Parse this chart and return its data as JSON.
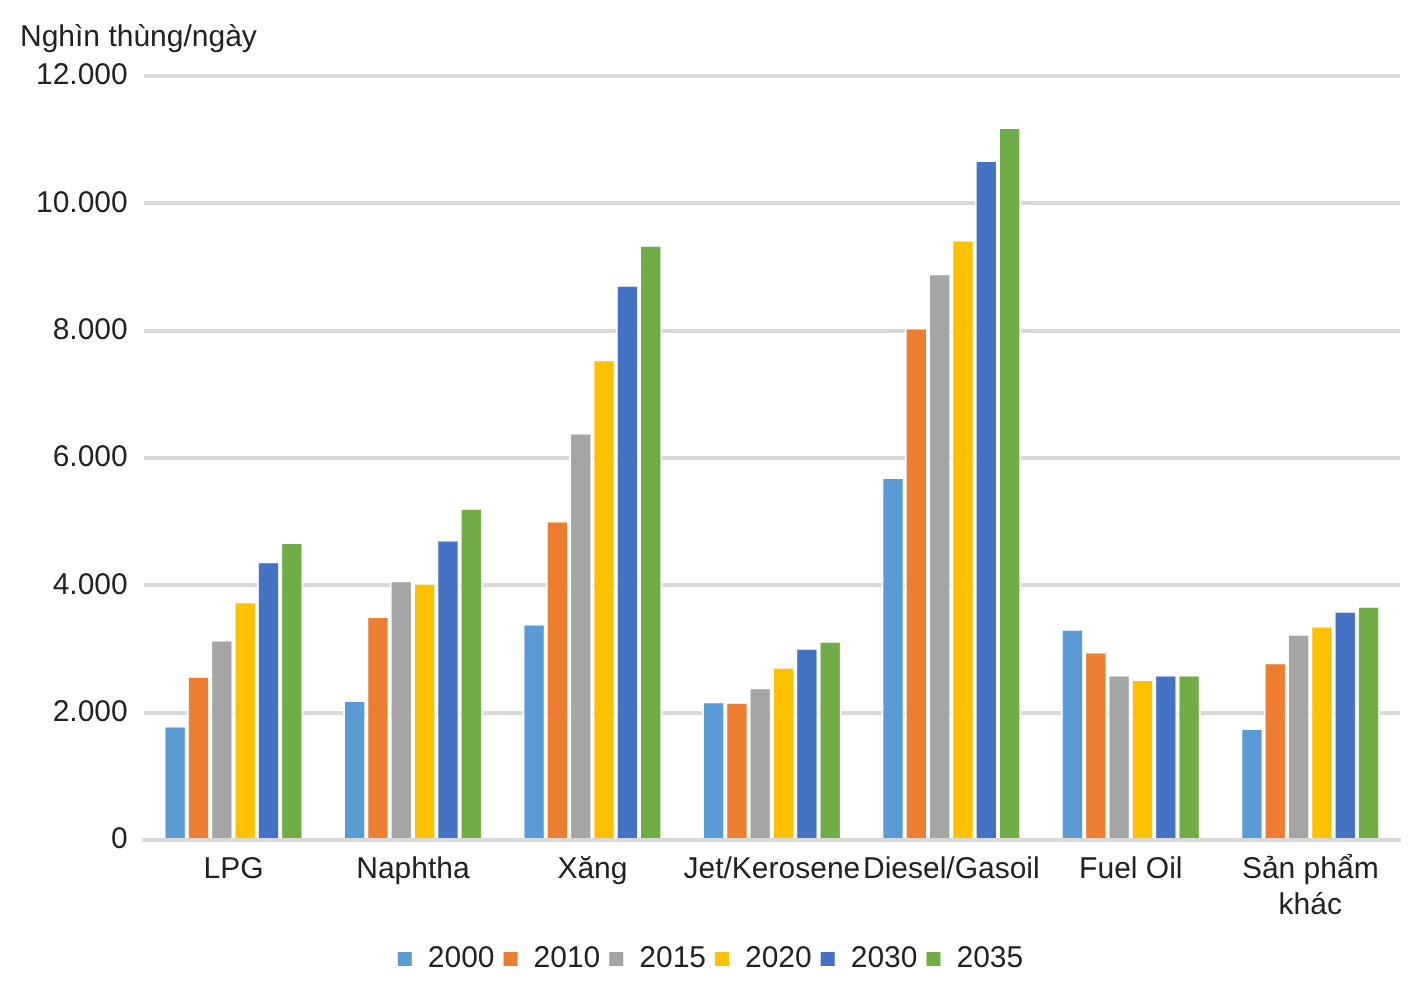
{
  "chart_data": {
    "type": "bar",
    "ylabel": "Nghìn thùng/ngày",
    "categories": [
      "LPG",
      "Naphtha",
      "Xăng",
      "Jet/Kerosene",
      "Diesel/Gasoil",
      "Fuel Oil",
      "Sản phẩm khác"
    ],
    "series": [
      {
        "name": "2000",
        "color": "#5b9bd5",
        "values": [
          1800,
          2200,
          3400,
          2180,
          5700,
          3320,
          1760
        ]
      },
      {
        "name": "2010",
        "color": "#ed7d31",
        "values": [
          2580,
          3520,
          5020,
          2170,
          8050,
          2960,
          2790
        ]
      },
      {
        "name": "2015",
        "color": "#a5a5a5",
        "values": [
          3150,
          4080,
          6400,
          2400,
          8900,
          2600,
          3240
        ]
      },
      {
        "name": "2020",
        "color": "#ffc000",
        "values": [
          3750,
          4040,
          7550,
          2720,
          9430,
          2530,
          3370
        ]
      },
      {
        "name": "2030",
        "color": "#4472c4",
        "values": [
          4380,
          4720,
          8720,
          3020,
          10680,
          2600,
          3600
        ]
      },
      {
        "name": "2035",
        "color": "#70ad47",
        "values": [
          4680,
          5220,
          9350,
          3130,
          11200,
          2600,
          3680
        ]
      }
    ],
    "ylim": [
      0,
      12000
    ],
    "yticks": [
      {
        "value": 0,
        "label": "0"
      },
      {
        "value": 2000,
        "label": "2.000"
      },
      {
        "value": 4000,
        "label": "4.000"
      },
      {
        "value": 6000,
        "label": "6.000"
      },
      {
        "value": 8000,
        "label": "8.000"
      },
      {
        "value": 10000,
        "label": "10.000"
      },
      {
        "value": 12000,
        "label": "12.000"
      }
    ],
    "grid": "y",
    "legend": "bottom"
  }
}
